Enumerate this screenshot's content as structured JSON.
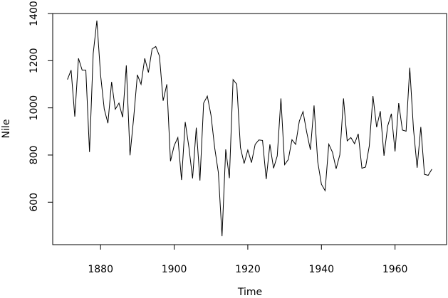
{
  "chart_data": {
    "type": "line",
    "xlabel": "Time",
    "ylabel": "Nile",
    "xlim": [
      1867,
      1974
    ],
    "ylim": [
      420,
      1400
    ],
    "x_ticks": [
      1880,
      1900,
      1920,
      1940,
      1960
    ],
    "y_ticks": [
      600,
      800,
      1000,
      1200,
      1400
    ],
    "grid": false,
    "line_color": "#000000",
    "series": [
      {
        "x_start": 1871,
        "x_end": 1970,
        "values": [
          1120,
          1160,
          963,
          1210,
          1160,
          1160,
          813,
          1230,
          1370,
          1140,
          995,
          935,
          1110,
          994,
          1020,
          960,
          1180,
          799,
          958,
          1140,
          1100,
          1210,
          1150,
          1250,
          1260,
          1220,
          1030,
          1100,
          774,
          840,
          874,
          694,
          940,
          833,
          701,
          916,
          692,
          1020,
          1050,
          969,
          831,
          726,
          456,
          824,
          702,
          1120,
          1100,
          832,
          764,
          821,
          768,
          845,
          864,
          862,
          698,
          845,
          744,
          796,
          1040,
          759,
          781,
          865,
          845,
          944,
          984,
          897,
          822,
          1010,
          771,
          676,
          649,
          846,
          812,
          742,
          801,
          1040,
          860,
          874,
          848,
          890,
          744,
          749,
          838,
          1050,
          918,
          986,
          797,
          923,
          975,
          815,
          1020,
          906,
          901,
          1170,
          912,
          746,
          919,
          718,
          714,
          740
        ]
      }
    ]
  }
}
